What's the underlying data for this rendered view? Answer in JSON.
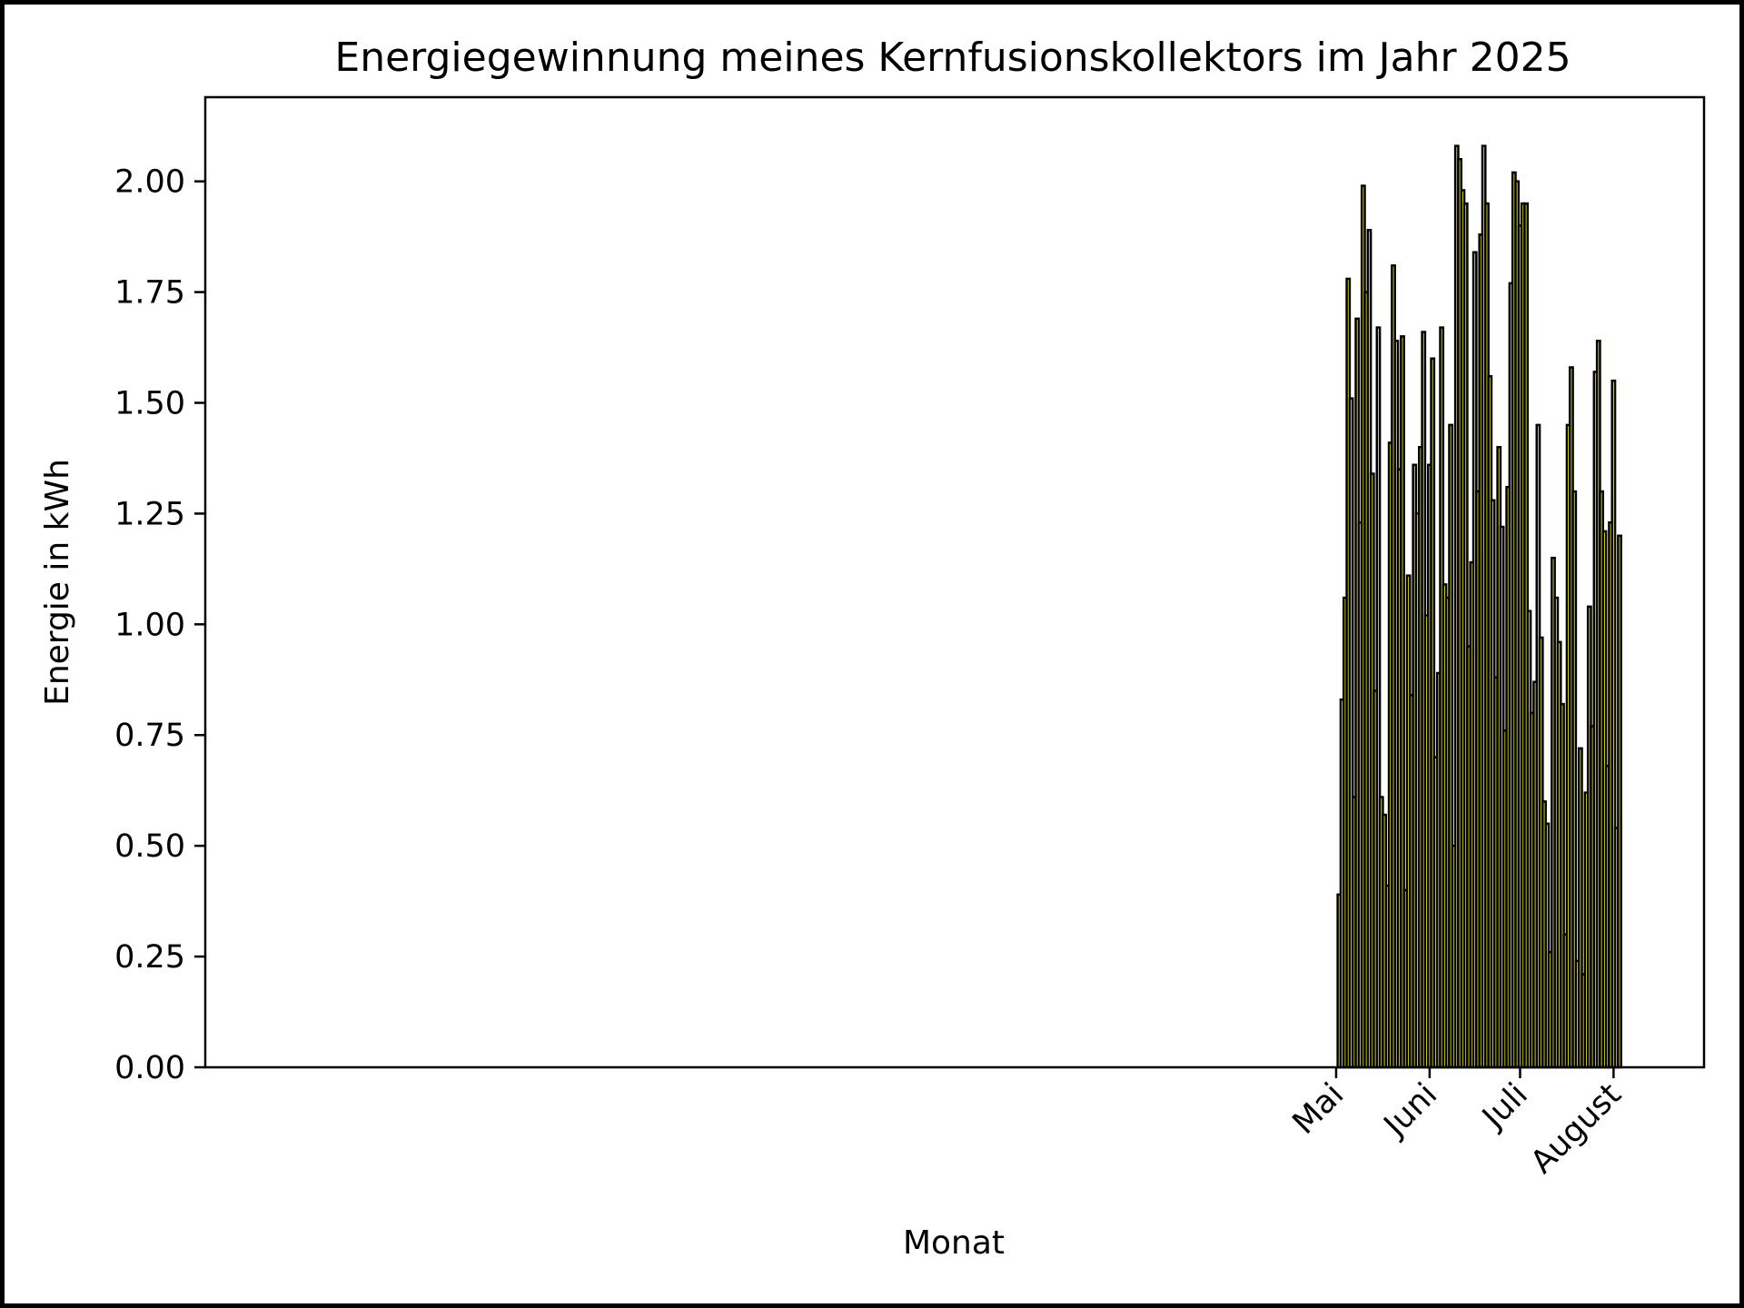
{
  "chart_data": {
    "type": "bar",
    "title": "Energiegewinnung meines Kernfusionskollektors im Jahr 2025",
    "xlabel": "Monat",
    "ylabel": "Energie in kWh",
    "x_start": "2025-05-01",
    "x_range": [
      "2024-04-21",
      "2025-08-31"
    ],
    "ylim": [
      0,
      2.19
    ],
    "yticks": [
      "0.00",
      "0.25",
      "0.50",
      "0.75",
      "1.00",
      "1.25",
      "1.50",
      "1.75",
      "2.00"
    ],
    "xticks": [
      {
        "label": "Mai",
        "date": "2025-05-01"
      },
      {
        "label": "Juni",
        "date": "2025-06-01"
      },
      {
        "label": "Juli",
        "date": "2025-07-01"
      },
      {
        "label": "August",
        "date": "2025-08-01"
      }
    ],
    "grid": false,
    "bar_color": "#ffff00",
    "edge_color": "#000000",
    "values": [
      0.0,
      0.39,
      0.83,
      1.06,
      1.78,
      1.51,
      0.61,
      1.69,
      1.23,
      1.99,
      1.75,
      1.89,
      1.34,
      0.85,
      1.67,
      0.61,
      0.57,
      0.41,
      1.41,
      1.81,
      1.64,
      1.35,
      1.65,
      0.4,
      1.11,
      0.84,
      1.36,
      1.25,
      1.4,
      1.66,
      1.02,
      1.36,
      1.6,
      0.7,
      0.89,
      1.67,
      1.09,
      1.06,
      1.45,
      0.5,
      2.08,
      2.05,
      1.98,
      1.95,
      0.95,
      1.14,
      1.84,
      1.3,
      1.88,
      2.08,
      1.95,
      1.56,
      1.28,
      0.88,
      1.4,
      1.22,
      0.76,
      1.31,
      1.77,
      2.02,
      2.0,
      1.9,
      1.95,
      1.95,
      1.03,
      0.8,
      0.87,
      1.45,
      0.97,
      0.6,
      0.55,
      0.26,
      1.15,
      1.06,
      0.96,
      0.82,
      0.3,
      1.45,
      1.58,
      1.3,
      0.24,
      0.72,
      0.21,
      0.62,
      1.04,
      0.77,
      1.57,
      1.64,
      1.3,
      1.21,
      0.68,
      1.23,
      1.55,
      0.54,
      1.2
    ]
  }
}
